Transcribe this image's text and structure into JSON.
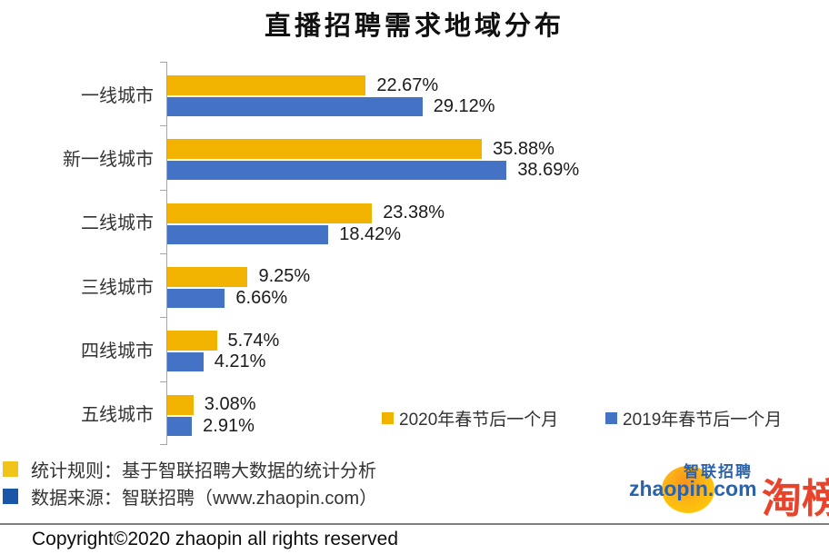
{
  "chart_data": {
    "type": "bar",
    "orientation": "horizontal",
    "title": "直播招聘需求地域分布",
    "categories": [
      "一线城市",
      "新一线城市",
      "二线城市",
      "三线城市",
      "四线城市",
      "五线城市"
    ],
    "series": [
      {
        "name": "2020年春节后一个月",
        "color": "#f2b300",
        "values": [
          22.67,
          35.88,
          23.38,
          9.25,
          5.74,
          3.08
        ]
      },
      {
        "name": "2019年春节后一个月",
        "color": "#4472c4",
        "values": [
          29.12,
          38.69,
          18.42,
          6.66,
          4.21,
          2.91
        ]
      }
    ],
    "value_suffix": "%",
    "xlim": [
      0,
      40
    ],
    "grid": false,
    "legend_position": "inside-bottom-right",
    "axis_color": "#a6a6a6"
  },
  "footnotes": [
    {
      "color": "#f0c419",
      "text": "统计规则：基于智联招聘大数据的统计分析"
    },
    {
      "color": "#1a56a8",
      "text": "数据来源：智联招聘（www.zhaopin.com）"
    }
  ],
  "logos": {
    "zhaopin_cn": "智联招聘",
    "zhaopin_en": "zhaopin.com",
    "taobangdan": "淘榜单"
  },
  "copyright": "Copyright©2020 zhaopin all rights reserved"
}
